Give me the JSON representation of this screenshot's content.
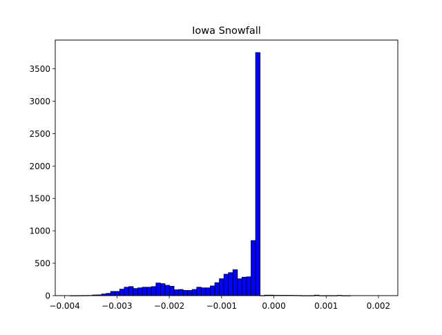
{
  "chart_data": {
    "type": "bar",
    "title": "Iowa Snowfall",
    "xlabel": "",
    "ylabel": "",
    "xlim": [
      -0.00418,
      0.00237
    ],
    "ylim": [
      0,
      3943
    ],
    "x_ticks": [
      -0.004,
      -0.003,
      -0.002,
      -0.001,
      0.0,
      0.001,
      0.002
    ],
    "x_tick_labels": [
      "−0.004",
      "−0.003",
      "−0.002",
      "−0.001",
      "0.000",
      "0.001",
      "0.002"
    ],
    "y_ticks": [
      0,
      500,
      1000,
      1500,
      2000,
      2500,
      3000,
      3500
    ],
    "y_tick_labels": [
      "0",
      "500",
      "1000",
      "1500",
      "2000",
      "2500",
      "3000",
      "3500"
    ],
    "grid": false,
    "bar_color": "#0000ff",
    "edge_color": "#000000",
    "bins": {
      "start": -0.0039,
      "width": 8.66e-05,
      "counts": [
        1,
        1,
        2,
        2,
        4,
        10,
        12,
        25,
        35,
        65,
        65,
        100,
        130,
        140,
        110,
        120,
        130,
        130,
        140,
        195,
        185,
        160,
        145,
        90,
        95,
        80,
        80,
        95,
        130,
        120,
        120,
        150,
        200,
        260,
        330,
        355,
        400,
        260,
        285,
        290,
        850,
        3750,
        1,
        8,
        8,
        5,
        5,
        5,
        5,
        4,
        3,
        1,
        1,
        1,
        8,
        1,
        1,
        1,
        1,
        5,
        1,
        1,
        0,
        0,
        0,
        0,
        0,
        0,
        0,
        0
      ]
    }
  }
}
